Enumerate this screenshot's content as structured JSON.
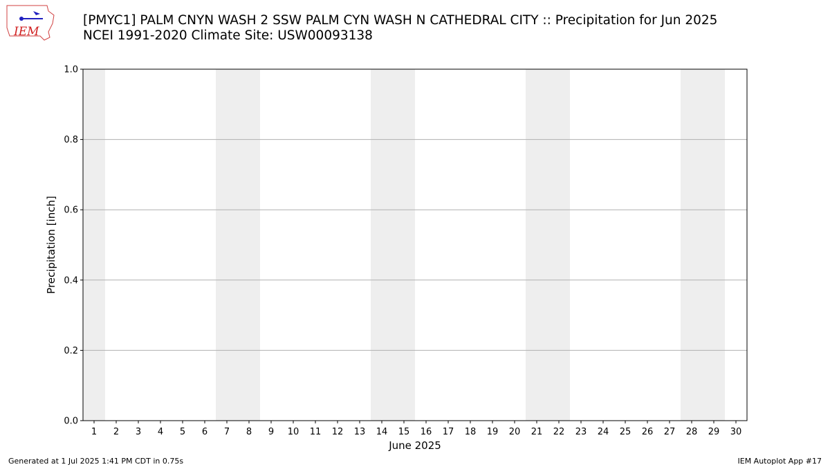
{
  "chart_data": {
    "type": "bar",
    "title": "[PMYC1] PALM CNYN WASH 2 SSW PALM CYN WASH N CATHEDRAL CITY :: Precipitation for Jun 2025",
    "subtitle": "NCEI 1991-2020 Climate Site: USW00093138",
    "x_label": "June 2025",
    "y_label": "Precipitation [inch]",
    "x": [
      1,
      2,
      3,
      4,
      5,
      6,
      7,
      8,
      9,
      10,
      11,
      12,
      13,
      14,
      15,
      16,
      17,
      18,
      19,
      20,
      21,
      22,
      23,
      24,
      25,
      26,
      27,
      28,
      29,
      30
    ],
    "values": [
      0,
      0,
      0,
      0,
      0,
      0,
      0,
      0,
      0,
      0,
      0,
      0,
      0,
      0,
      0,
      0,
      0,
      0,
      0,
      0,
      0,
      0,
      0,
      0,
      0,
      0,
      0,
      0,
      0,
      0
    ],
    "color": "#1f77b4",
    "shaded_days": [
      1,
      7,
      8,
      14,
      15,
      21,
      22,
      28,
      29
    ],
    "shade_color": "#eeeeee",
    "xlim": [
      0.5,
      30.5
    ],
    "xticks": [
      1,
      2,
      3,
      4,
      5,
      6,
      7,
      8,
      9,
      10,
      11,
      12,
      13,
      14,
      15,
      16,
      17,
      18,
      19,
      20,
      21,
      22,
      23,
      24,
      25,
      26,
      27,
      28,
      29,
      30
    ],
    "ylim": [
      0,
      1
    ],
    "yticks": [
      {
        "value": 0,
        "label": "0.0"
      },
      {
        "value": 0.2,
        "label": "0.2"
      },
      {
        "value": 0.4,
        "label": "0.4"
      },
      {
        "value": 0.6,
        "label": "0.6"
      },
      {
        "value": 0.8,
        "label": "0.8"
      },
      {
        "value": 1,
        "label": "1.0"
      }
    ],
    "grid": true,
    "footer_left": "Generated at 1 Jul 2025 1:41 PM CDT in 0.75s",
    "footer_right": "IEM Autoplot App #17"
  }
}
